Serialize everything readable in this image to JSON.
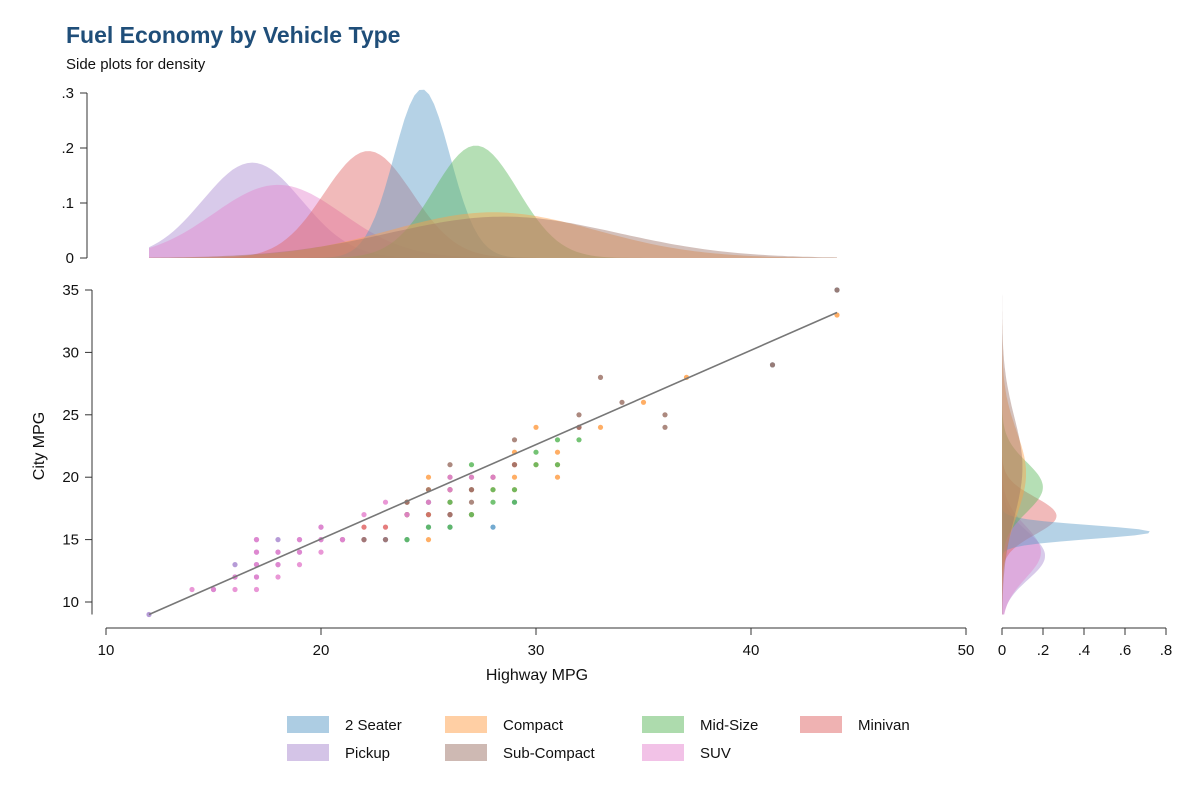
{
  "chart_data": {
    "type": "scatter",
    "title": "Fuel Economy by Vehicle Type",
    "subtitle": "Side plots for density",
    "xlabel": "Highway MPG",
    "ylabel": "City MPG",
    "xlim": [
      10,
      50
    ],
    "ylim": [
      9,
      35
    ],
    "x_ticks": [
      "10",
      "20",
      "30",
      "40",
      "50"
    ],
    "y_ticks": [
      "10",
      "15",
      "20",
      "25",
      "30",
      "35"
    ],
    "top_density": {
      "ylim": [
        0,
        0.3
      ],
      "ticks": [
        "0",
        ".1",
        ".2",
        ".3"
      ]
    },
    "right_density": {
      "xlim": [
        0,
        0.8
      ],
      "ticks": [
        "0",
        ".2",
        ".4",
        ".6",
        ".8"
      ]
    },
    "grid": false,
    "legend_position": "bottom",
    "fit_line": {
      "x": [
        12,
        44
      ],
      "y": [
        9,
        33.2
      ]
    },
    "colors": {
      "2 Seater": "#5b9bc8",
      "Compact": "#ffa04a",
      "Mid-Size": "#5cb85c",
      "Minivan": "#e06666",
      "Pickup": "#a98ad0",
      "Sub-Compact": "#9e7468",
      "SUV": "#e585cf"
    },
    "series": [
      {
        "name": "2 Seater",
        "points": [
          [
            23,
            15
          ],
          [
            24,
            15
          ],
          [
            25,
            16
          ],
          [
            26,
            16
          ],
          [
            26,
            17
          ],
          [
            27,
            17
          ],
          [
            28,
            16
          ],
          [
            29,
            18
          ],
          [
            25,
            18
          ],
          [
            44,
            35
          ],
          [
            41,
            29
          ],
          [
            26,
            18
          ]
        ]
      },
      {
        "name": "Compact",
        "points": [
          [
            25,
            15
          ],
          [
            25,
            20
          ],
          [
            25,
            19
          ],
          [
            26,
            18
          ],
          [
            27,
            17
          ],
          [
            28,
            19
          ],
          [
            29,
            20
          ],
          [
            29,
            21
          ],
          [
            29,
            22
          ],
          [
            30,
            24
          ],
          [
            30,
            21
          ],
          [
            31,
            22
          ],
          [
            31,
            20
          ],
          [
            31,
            21
          ],
          [
            33,
            24
          ],
          [
            35,
            26
          ],
          [
            37,
            28
          ],
          [
            44,
            33
          ],
          [
            29,
            19
          ]
        ]
      },
      {
        "name": "Mid-Size",
        "points": [
          [
            24,
            15
          ],
          [
            24,
            17
          ],
          [
            24,
            18
          ],
          [
            25,
            16
          ],
          [
            25,
            17
          ],
          [
            26,
            16
          ],
          [
            26,
            18
          ],
          [
            27,
            17
          ],
          [
            27,
            19
          ],
          [
            27,
            21
          ],
          [
            28,
            18
          ],
          [
            28,
            19
          ],
          [
            29,
            18
          ],
          [
            29,
            19
          ],
          [
            30,
            21
          ],
          [
            30,
            22
          ],
          [
            31,
            21
          ],
          [
            31,
            23
          ],
          [
            32,
            23
          ],
          [
            26,
            19
          ]
        ]
      },
      {
        "name": "Minivan",
        "points": [
          [
            21,
            15
          ],
          [
            22,
            15
          ],
          [
            22,
            16
          ],
          [
            23,
            16
          ],
          [
            24,
            17
          ],
          [
            24,
            18
          ],
          [
            25,
            17
          ],
          [
            26,
            17
          ],
          [
            27,
            19
          ],
          [
            28,
            20
          ],
          [
            29,
            21
          ],
          [
            32,
            24
          ],
          [
            26,
            19
          ]
        ]
      },
      {
        "name": "Pickup",
        "points": [
          [
            12,
            9
          ],
          [
            15,
            11
          ],
          [
            16,
            12
          ],
          [
            16,
            13
          ],
          [
            17,
            12
          ],
          [
            17,
            13
          ],
          [
            17,
            14
          ],
          [
            17,
            15
          ],
          [
            18,
            13
          ],
          [
            18,
            14
          ],
          [
            18,
            15
          ],
          [
            19,
            14
          ],
          [
            19,
            15
          ],
          [
            20,
            15
          ],
          [
            20,
            16
          ],
          [
            21,
            15
          ],
          [
            22,
            15
          ],
          [
            23,
            15
          ]
        ]
      },
      {
        "name": "Sub-Compact",
        "points": [
          [
            22,
            15
          ],
          [
            23,
            15
          ],
          [
            24,
            17
          ],
          [
            24,
            18
          ],
          [
            25,
            18
          ],
          [
            25,
            19
          ],
          [
            26,
            17
          ],
          [
            26,
            20
          ],
          [
            26,
            21
          ],
          [
            27,
            18
          ],
          [
            27,
            19
          ],
          [
            27,
            20
          ],
          [
            28,
            20
          ],
          [
            29,
            21
          ],
          [
            29,
            23
          ],
          [
            32,
            24
          ],
          [
            32,
            25
          ],
          [
            33,
            28
          ],
          [
            34,
            26
          ],
          [
            36,
            24
          ],
          [
            36,
            25
          ],
          [
            41,
            29
          ],
          [
            44,
            35
          ],
          [
            26,
            19
          ]
        ]
      },
      {
        "name": "SUV",
        "points": [
          [
            14,
            11
          ],
          [
            15,
            11
          ],
          [
            16,
            11
          ],
          [
            16,
            12
          ],
          [
            17,
            11
          ],
          [
            17,
            12
          ],
          [
            17,
            13
          ],
          [
            17,
            14
          ],
          [
            17,
            15
          ],
          [
            18,
            12
          ],
          [
            18,
            13
          ],
          [
            18,
            14
          ],
          [
            19,
            13
          ],
          [
            19,
            14
          ],
          [
            19,
            15
          ],
          [
            20,
            14
          ],
          [
            20,
            15
          ],
          [
            20,
            16
          ],
          [
            21,
            15
          ],
          [
            22,
            17
          ],
          [
            23,
            18
          ],
          [
            24,
            17
          ],
          [
            25,
            18
          ],
          [
            26,
            19
          ],
          [
            26,
            20
          ],
          [
            27,
            20
          ],
          [
            28,
            20
          ]
        ]
      }
    ],
    "density_x": [
      {
        "name": "Pickup",
        "mean": 16.8,
        "sd": 2.3,
        "lo": 12,
        "hi": 44
      },
      {
        "name": "SUV",
        "mean": 18.0,
        "sd": 3.0,
        "lo": 12,
        "hi": 44
      },
      {
        "name": "Minivan",
        "mean": 22.2,
        "sd": 2.05,
        "lo": 12,
        "hi": 44
      },
      {
        "name": "2 Seater",
        "mean": 24.7,
        "sd": 1.3,
        "lo": 12,
        "hi": 44
      },
      {
        "name": "Mid-Size",
        "mean": 27.2,
        "sd": 1.95,
        "lo": 12,
        "hi": 44
      },
      {
        "name": "Compact",
        "mean": 28.0,
        "sd": 4.8,
        "lo": 12,
        "hi": 44
      },
      {
        "name": "Sub-Compact",
        "mean": 28.5,
        "sd": 5.3,
        "lo": 12,
        "hi": 44
      }
    ],
    "density_y": [
      {
        "name": "Pickup",
        "mean": 13.7,
        "sd": 1.9,
        "lo": 9,
        "hi": 35
      },
      {
        "name": "SUV",
        "mean": 14.0,
        "sd": 2.1,
        "lo": 9,
        "hi": 35
      },
      {
        "name": "Minivan",
        "mean": 16.9,
        "sd": 1.5,
        "lo": 9,
        "hi": 35
      },
      {
        "name": "2 Seater",
        "mean": 15.6,
        "sd": 0.55,
        "lo": 9,
        "hi": 35
      },
      {
        "name": "Mid-Size",
        "mean": 19.2,
        "sd": 2.0,
        "lo": 9,
        "hi": 35
      },
      {
        "name": "Compact",
        "mean": 20.3,
        "sd": 3.4,
        "lo": 9,
        "hi": 35
      },
      {
        "name": "Sub-Compact",
        "mean": 20.8,
        "sd": 4.0,
        "lo": 9,
        "hi": 35
      }
    ],
    "legend": [
      "2 Seater",
      "Compact",
      "Mid-Size",
      "Minivan",
      "Pickup",
      "Sub-Compact",
      "SUV"
    ]
  }
}
